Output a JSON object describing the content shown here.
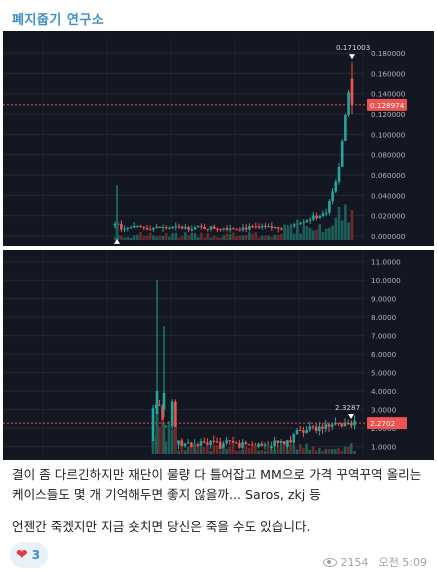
{
  "channel": {
    "title": "폐지줍기 연구소"
  },
  "chart_data": [
    {
      "type": "candlestick",
      "y_ticks": [
        "0.180000",
        "0.160000",
        "0.140000",
        "0.120000",
        "0.100000",
        "0.080000",
        "0.060000",
        "0.040000",
        "0.020000",
        "0.000000"
      ],
      "ylim": [
        -0.004,
        0.186
      ],
      "current_price_label": "0.128974",
      "current_price": 0.128974,
      "high_label": "0.171003",
      "high": 0.171003,
      "low_label": "0.000000",
      "grid": true,
      "colors": {
        "up": "#26a69a",
        "down": "#ef5350",
        "price_line": "#ef5350",
        "background": "#131722"
      }
    },
    {
      "type": "candlestick",
      "y_ticks": [
        "11.0000",
        "10.0000",
        "9.0000",
        "8.0000",
        "7.0000",
        "6.0000",
        "5.0000",
        "4.0000",
        "3.0000",
        "2.0000",
        "1.0000"
      ],
      "ylim": [
        0.6,
        11.2
      ],
      "current_price_label": "2.2702",
      "current_price": 2.2702,
      "high_label": "2.3287",
      "high": 2.3287,
      "grid": true,
      "colors": {
        "up": "#26a69a",
        "down": "#ef5350",
        "price_line": "#ef5350",
        "background": "#131722"
      }
    }
  ],
  "caption": {
    "line1": "결이 좀 다르긴하지만 재단이 물량 다 틀어잡고 MM으로 가격 꾸역꾸역 올리는 케이스들도 몇 개 기억해두면 좋지 않을까... Saros, zkj 등",
    "line2": "언젠간 죽겠지만 지금 숏치면 당신은 죽을 수도 있습니다."
  },
  "reaction": {
    "emoji": "❤",
    "count": "3"
  },
  "meta": {
    "views": "2154",
    "time": "오전 5:09"
  }
}
